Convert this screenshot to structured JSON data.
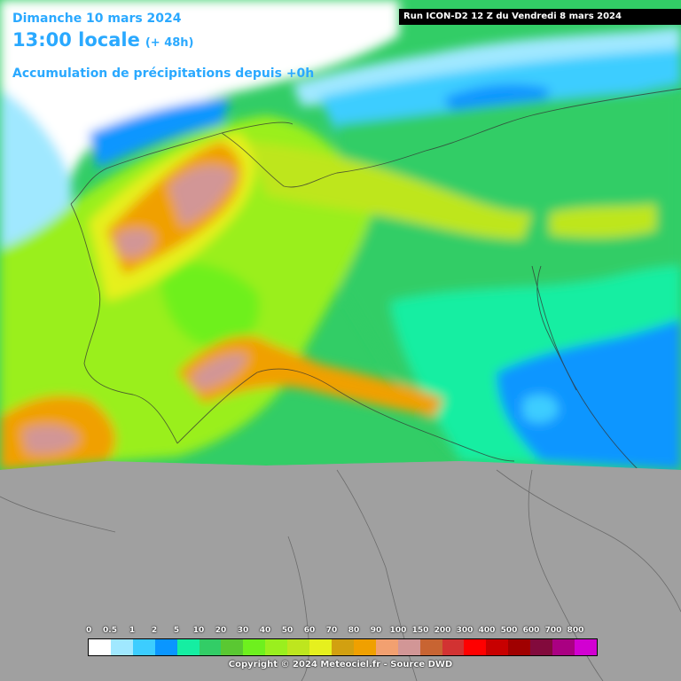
{
  "header": {
    "date": "Dimanche 10 mars 2024",
    "time": "13:00 locale",
    "offset": "(+ 48h)",
    "product": "Accumulation de précipitations depuis +0h"
  },
  "run_label": "Run ICON-D2 12 Z du Vendredi 8 mars 2024",
  "legend": {
    "labels": [
      "0",
      "0.5",
      "1",
      "2",
      "5",
      "10",
      "20",
      "30",
      "40",
      "50",
      "60",
      "70",
      "80",
      "90",
      "100",
      "150",
      "200",
      "300",
      "400",
      "500",
      "600",
      "700",
      "800"
    ],
    "colors": [
      "#ffffff",
      "#a0e8ff",
      "#3ccdff",
      "#0a96ff",
      "#15eea2",
      "#32cd66",
      "#5ac832",
      "#6ef01e",
      "#9aef1e",
      "#bee61e",
      "#e6f01e",
      "#d2a010",
      "#f0a000",
      "#f2a070",
      "#d29696",
      "#c86432",
      "#d23232",
      "#ff0000",
      "#c80000",
      "#a00000",
      "#820a3c",
      "#aa0082",
      "#d200d2"
    ]
  },
  "copyright": "Copyright © 2024 Meteociel.fr - Source DWD",
  "map": {
    "no_data_color": "#a0a0a0",
    "region": "Alpes / Italie du Nord"
  }
}
